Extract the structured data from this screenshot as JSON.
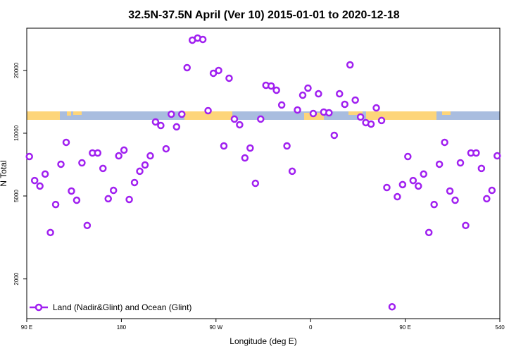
{
  "chart_data": {
    "type": "scatter",
    "title": "32.5N-37.5N April (Ver 10)   2015-01-01 to 2020-12-18",
    "x_label": "Longitude (deg E)",
    "y_label": "N Total",
    "xlim": [
      90,
      540
    ],
    "ylim": [
      1290,
      31900
    ],
    "yscale": "log",
    "xticks": [
      {
        "value": 90,
        "label": "90 E"
      },
      180,
      {
        "value": 270,
        "label": "90 W"
      },
      {
        "value": 360,
        "label": "0"
      },
      {
        "value": 450,
        "label": "90 E"
      },
      540
    ],
    "yticks": [
      2000,
      5000,
      10000,
      20000
    ],
    "legend_position": "bottom-left",
    "series": [
      {
        "name": "Land (Nadir&Glint) and Ocean (Glint)",
        "color": "#a020f0",
        "x": [
          92.5,
          97.5,
          102.5,
          107.5,
          112.5,
          117.5,
          122.5,
          127.5,
          132.5,
          137.5,
          142.5,
          147.5,
          152.5,
          157.5,
          162.5,
          167.5,
          172.5,
          177.5,
          182.5,
          187.5,
          192.5,
          197.5,
          202.5,
          207.5,
          212.5,
          217.5,
          222.5,
          227.5,
          232.5,
          237.5,
          242.5,
          247.5,
          252.5,
          257.5,
          262.5,
          267.5,
          272.5,
          277.5,
          282.5,
          287.5,
          292.5,
          297.5,
          302.5,
          307.5,
          312.5,
          317.5,
          322.5,
          327.5,
          332.5,
          337.5,
          342.5,
          347.5,
          352.5,
          357.5,
          362.5,
          367.5,
          372.5,
          377.5,
          382.5,
          387.5,
          392.5,
          397.5,
          402.5,
          407.5,
          412.5,
          417.5,
          422.5,
          427.5,
          432.5,
          437.5,
          442.5,
          447.5,
          452.5,
          457.5,
          462.5,
          467.5,
          472.5,
          477.5,
          482.5,
          487.5,
          492.5,
          497.5,
          502.5,
          507.5,
          512.5,
          517.5,
          522.5,
          527.5,
          532.5,
          537.5
        ],
        "values": [
          7730,
          5930,
          5580,
          6370,
          3340,
          4550,
          7100,
          9040,
          5280,
          4770,
          7210,
          3610,
          8040,
          8040,
          6780,
          4850,
          5320,
          7790,
          8300,
          4810,
          5800,
          6570,
          7040,
          7790,
          11330,
          10890,
          8420,
          12340,
          10730,
          12340,
          20630,
          27950,
          28610,
          28170,
          12830,
          19390,
          20000,
          8690,
          18360,
          11690,
          10980,
          7610,
          8490,
          5750,
          11690,
          16980,
          16850,
          16080,
          13660,
          8690,
          6570,
          12930,
          15220,
          16460,
          12430,
          15460,
          12630,
          12530,
          9770,
          15460,
          13760,
          21280,
          14420,
          11960,
          11240,
          11060,
          13230,
          11510,
          5490,
          1470,
          4960,
          5670,
          7730,
          5930,
          5580,
          6370,
          3340,
          4550,
          7100,
          9040,
          5280,
          4770,
          7210,
          3610,
          8040,
          8040,
          6780,
          4850,
          5320,
          7790
        ]
      }
    ]
  }
}
